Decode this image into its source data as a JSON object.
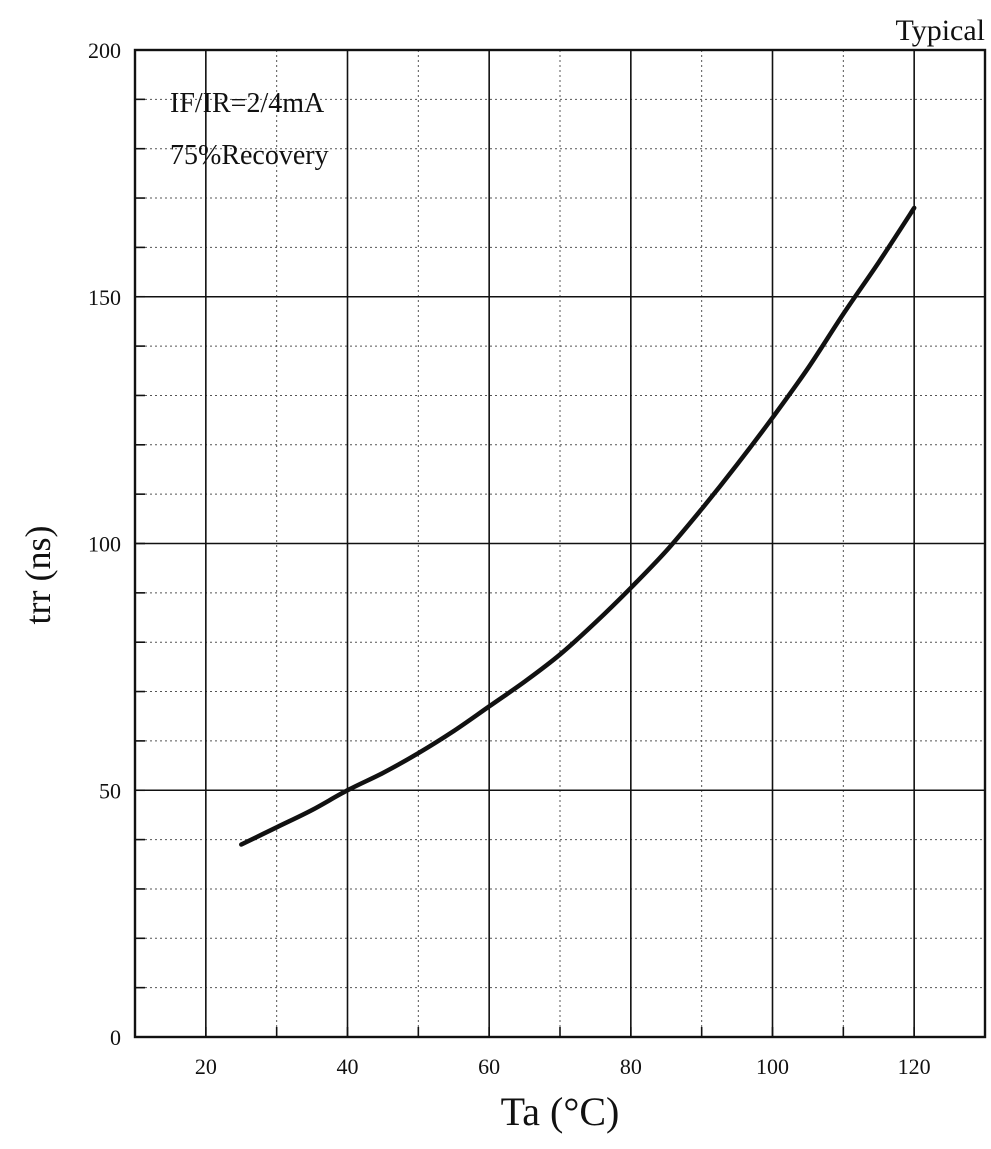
{
  "chart_data": {
    "type": "line",
    "title": "Typical",
    "xlabel": "Ta (°C)",
    "ylabel": "trr (ns)",
    "xlim": [
      10,
      130
    ],
    "ylim": [
      0,
      200
    ],
    "x_ticks": [
      20,
      40,
      60,
      80,
      100,
      120
    ],
    "y_ticks": [
      0,
      50,
      100,
      150,
      200
    ],
    "x_minor_step": 10,
    "y_minor_step": 10,
    "grid": true,
    "annotations": [
      "IF/IR=2/4mA",
      "75%Recovery"
    ],
    "series": [
      {
        "x": [
          25,
          30,
          35,
          40,
          45,
          50,
          55,
          60,
          65,
          70,
          75,
          80,
          85,
          90,
          95,
          100,
          105,
          110,
          115,
          120
        ],
        "y": [
          39,
          42.5,
          46,
          50,
          53.5,
          57.5,
          62,
          67,
          72,
          77.5,
          84,
          91,
          98.5,
          107,
          116,
          125.5,
          135.5,
          146.5,
          157,
          168
        ]
      }
    ]
  }
}
